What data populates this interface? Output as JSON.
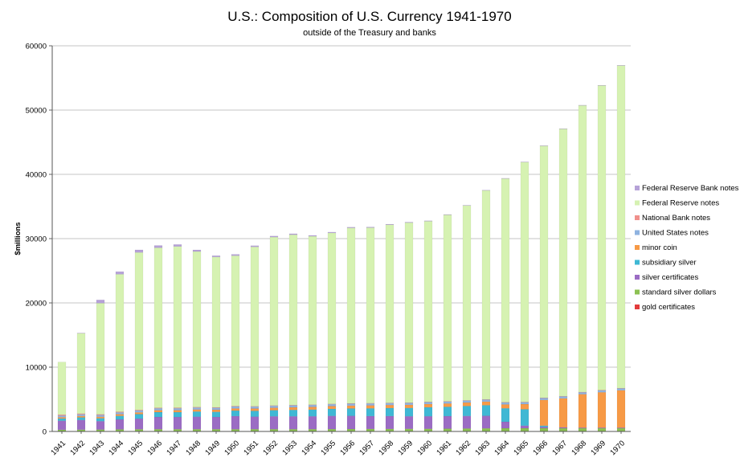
{
  "chart_data": {
    "type": "bar",
    "stacked": true,
    "title": "U.S.: Composition of U.S. Currency 1941-1970",
    "subtitle": "outside of the Treasury and banks",
    "ylabel": "$millions",
    "xlabel": "",
    "ylim": [
      0,
      60000
    ],
    "yticks": [
      "0",
      "10000",
      "20000",
      "30000",
      "40000",
      "50000",
      "60000"
    ],
    "grid": true,
    "legend_position": "right",
    "categories": [
      "1941",
      "1942",
      "1943",
      "1944",
      "1945",
      "1946",
      "1947",
      "1948",
      "1949",
      "1950",
      "1951",
      "1952",
      "1953",
      "1954",
      "1955",
      "1956",
      "1957",
      "1958",
      "1959",
      "1960",
      "1961",
      "1962",
      "1963",
      "1964",
      "1965",
      "1966",
      "1967",
      "1968",
      "1969",
      "1970"
    ],
    "series": [
      {
        "name": "gold certificates",
        "color": "#e33b3b",
        "values": [
          60,
          55,
          50,
          50,
          50,
          50,
          45,
          45,
          45,
          40,
          40,
          40,
          35,
          35,
          35,
          35,
          35,
          30,
          30,
          30,
          30,
          30,
          30,
          20,
          20,
          20,
          15,
          15,
          15,
          15
        ]
      },
      {
        "name": "standard silver dollars",
        "color": "#8cc152",
        "values": [
          200,
          225,
          245,
          270,
          290,
          300,
          300,
          300,
          300,
          300,
          310,
          310,
          315,
          320,
          330,
          340,
          355,
          360,
          375,
          380,
          400,
          425,
          450,
          480,
          480,
          480,
          480,
          480,
          480,
          480
        ]
      },
      {
        "name": "silver certificates",
        "color": "#9b6cc4",
        "values": [
          1400,
          1500,
          1300,
          1550,
          1650,
          1900,
          1900,
          1950,
          1900,
          2050,
          1950,
          2000,
          2000,
          2000,
          2050,
          2050,
          2000,
          2000,
          1950,
          1950,
          1950,
          1950,
          1950,
          1000,
          400,
          200,
          150,
          100,
          100,
          100
        ]
      },
      {
        "name": "subsidiary silver",
        "color": "#3fb8d4",
        "values": [
          350,
          400,
          450,
          550,
          700,
          750,
          750,
          800,
          800,
          850,
          900,
          950,
          1000,
          1050,
          1100,
          1150,
          1200,
          1250,
          1300,
          1400,
          1450,
          1550,
          1650,
          2100,
          2550,
          200,
          0,
          0,
          0,
          0
        ]
      },
      {
        "name": "minor coin",
        "color": "#f79a46",
        "values": [
          200,
          220,
          240,
          260,
          280,
          300,
          310,
          320,
          330,
          340,
          360,
          380,
          400,
          410,
          420,
          440,
          460,
          470,
          480,
          500,
          520,
          540,
          560,
          600,
          800,
          4000,
          4500,
          5200,
          5500,
          5800
        ]
      },
      {
        "name": "United States notes",
        "color": "#8fb3e0",
        "values": [
          250,
          260,
          270,
          280,
          290,
          300,
          300,
          300,
          300,
          300,
          300,
          300,
          300,
          300,
          300,
          300,
          300,
          300,
          300,
          300,
          300,
          300,
          300,
          300,
          300,
          300,
          300,
          300,
          300,
          300
        ]
      },
      {
        "name": "National Bank notes",
        "color": "#f0908c",
        "values": [
          150,
          120,
          110,
          100,
          90,
          80,
          80,
          80,
          70,
          70,
          60,
          60,
          60,
          55,
          55,
          55,
          55,
          50,
          50,
          50,
          50,
          50,
          50,
          50,
          50,
          40,
          40,
          40,
          40,
          40
        ]
      },
      {
        "name": "Federal Reserve notes",
        "color": "#d6f2b2",
        "values": [
          8190,
          12500,
          17300,
          21400,
          24500,
          24900,
          25100,
          24200,
          23400,
          23400,
          24800,
          26200,
          26500,
          26200,
          26600,
          27300,
          27300,
          27700,
          28000,
          28100,
          29000,
          30300,
          32500,
          34800,
          37300,
          39200,
          41600,
          44600,
          47400,
          50200
        ]
      },
      {
        "name": "Federal Reserve Bank notes",
        "color": "#b6a2d8",
        "values": [
          0,
          20,
          500,
          400,
          400,
          350,
          300,
          250,
          200,
          200,
          180,
          160,
          150,
          130,
          120,
          110,
          100,
          90,
          80,
          70,
          60,
          50,
          50,
          40,
          40,
          30,
          30,
          30,
          30,
          30
        ]
      }
    ]
  }
}
